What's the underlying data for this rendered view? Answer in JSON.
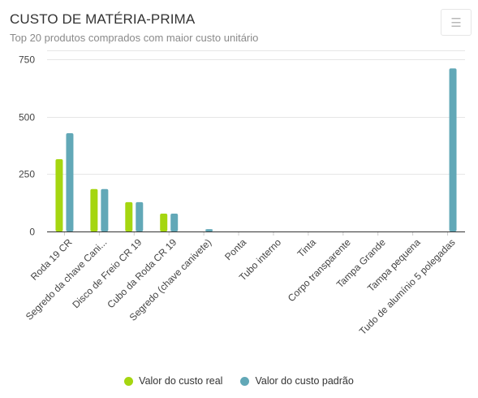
{
  "header": {
    "title": "CUSTO DE MATÉRIA-PRIMA",
    "subtitle": "Top 20 produtos comprados com maior custo unitário",
    "menu_icon": "hamburger-menu-icon"
  },
  "colors": {
    "real": "#a5d610",
    "padrao": "#62a8b7",
    "grid": "#e6e6e6",
    "axis": "#333333"
  },
  "chart_data": {
    "type": "bar",
    "title": "CUSTO DE MATÉRIA-PRIMA",
    "subtitle": "Top 20 produtos comprados com maior custo unitário",
    "categories": [
      "Roda 19 CR",
      "Segredo da chave Cani...",
      "Disco de Freio CR 19",
      "Cubo da Roda CR 19",
      "Segredo (chave canivete)",
      "Ponta",
      "Tubo interno",
      "Tinta",
      "Corpo transparente",
      "Tampa Grande",
      "Tampa pequena",
      "Tudo de alumínio 5 polegadas"
    ],
    "series": [
      {
        "name": "Valor do custo real",
        "values": [
          315,
          185,
          128,
          78,
          0,
          0,
          0,
          0,
          0,
          0,
          0,
          0
        ]
      },
      {
        "name": "Valor do custo padrão",
        "values": [
          428,
          185,
          128,
          78,
          10,
          0,
          0,
          0,
          0,
          0,
          0,
          710
        ]
      }
    ],
    "ylim": [
      0,
      750
    ],
    "yticks": [
      0,
      250,
      500,
      750
    ],
    "grid": true,
    "legend": "bottom-center"
  }
}
